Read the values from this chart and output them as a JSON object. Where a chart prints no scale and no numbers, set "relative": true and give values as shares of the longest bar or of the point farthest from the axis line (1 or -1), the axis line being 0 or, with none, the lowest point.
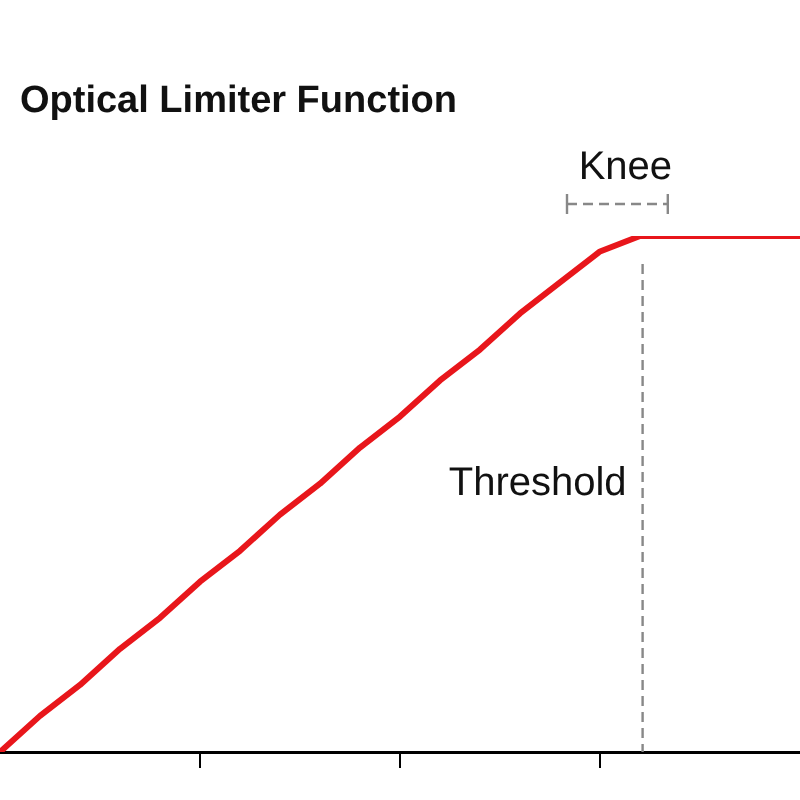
{
  "chart_data": {
    "type": "line",
    "title": "Optical Limiter Function",
    "relative": true,
    "categories": [
      null,
      null,
      null,
      null,
      null,
      null,
      null,
      null,
      null,
      null,
      null,
      null,
      null,
      null,
      null,
      null,
      null,
      null,
      null,
      null,
      null
    ],
    "series": [
      {
        "color": "#e8161b",
        "values": [
          0,
          0.07,
          0.13,
          0.2,
          0.26,
          0.33,
          0.39,
          0.46,
          0.52,
          0.59,
          0.65,
          0.72,
          0.78,
          0.85,
          0.91,
          0.97,
          1,
          1,
          1,
          1,
          1
        ]
      }
    ],
    "annotations": [
      "Threshold",
      "Knee"
    ],
    "grid": false,
    "legend": false,
    "marker": "none",
    "line_style": "solid",
    "tick_labels": false
  }
}
